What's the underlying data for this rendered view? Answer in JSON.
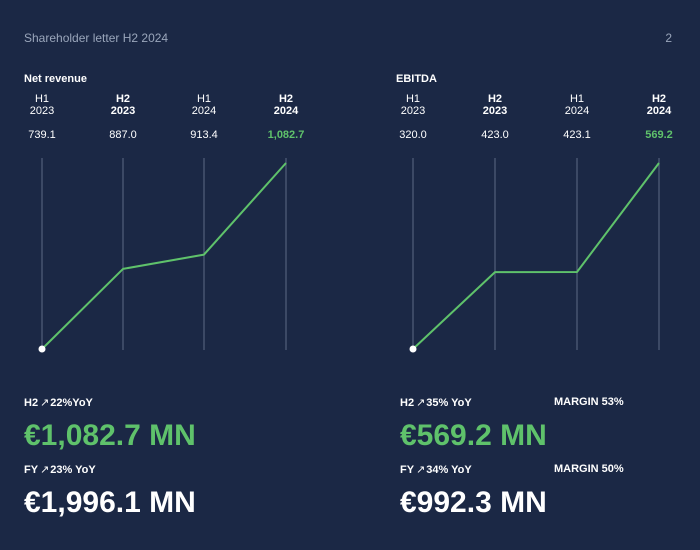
{
  "header": {
    "title": "Shareholder letter H2 2024",
    "page": "2"
  },
  "colors": {
    "background": "#1b2845",
    "accent": "#5fc26b",
    "gridline": "#5c6a85"
  },
  "chart_data": [
    {
      "type": "line",
      "title": "Net revenue",
      "categories": [
        {
          "half": "H1",
          "year": "2023",
          "bold": false
        },
        {
          "half": "H2",
          "year": "2023",
          "bold": true
        },
        {
          "half": "H1",
          "year": "2024",
          "bold": false
        },
        {
          "half": "H2",
          "year": "2024",
          "bold": true
        }
      ],
      "values": [
        739.1,
        887.0,
        913.4,
        1082.7
      ],
      "value_labels": [
        "739.1",
        "887.0",
        "913.4",
        "1,082.7"
      ],
      "highlight_index": 3,
      "grid": "vertical"
    },
    {
      "type": "line",
      "title": "EBITDA",
      "categories": [
        {
          "half": "H1",
          "year": "2023",
          "bold": false
        },
        {
          "half": "H2",
          "year": "2023",
          "bold": true
        },
        {
          "half": "H1",
          "year": "2024",
          "bold": false
        },
        {
          "half": "H2",
          "year": "2024",
          "bold": true
        }
      ],
      "values": [
        320.0,
        423.0,
        423.1,
        569.2
      ],
      "value_labels": [
        "320.0",
        "423.0",
        "423.1",
        "569.2"
      ],
      "highlight_index": 3,
      "grid": "vertical"
    }
  ],
  "kpis": {
    "revenue": {
      "h2_label": "H2",
      "h2_change": "22%YoY",
      "h2_value": "€1,082.7 MN",
      "fy_label": "FY",
      "fy_change": "23% YoY",
      "fy_value": "€1,996.1 MN"
    },
    "ebitda": {
      "h2_label": "H2",
      "h2_change": "35% YoY",
      "h2_value": "€569.2 MN",
      "h2_margin": "MARGIN 53%",
      "fy_label": "FY",
      "fy_change": "34% YoY",
      "fy_value": "€992.3 MN",
      "fy_margin": "MARGIN 50%"
    }
  }
}
